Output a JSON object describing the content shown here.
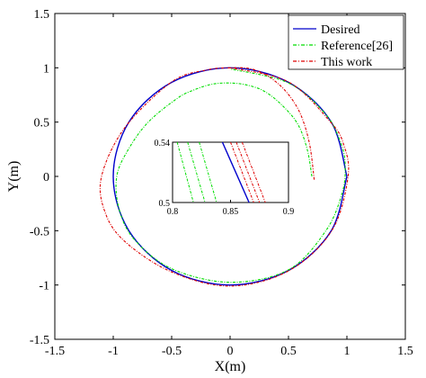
{
  "chart_data": {
    "type": "line",
    "xlabel": "X(m)",
    "ylabel": "Y(m)",
    "xlim": [
      -1.5,
      1.5
    ],
    "ylim": [
      -1.5,
      1.5
    ],
    "xticks": [
      "-1.5",
      "-1",
      "-0.5",
      "0",
      "0.5",
      "1",
      "1.5"
    ],
    "yticks": [
      "-1.5",
      "-1",
      "-0.5",
      "0",
      "0.5",
      "1",
      "1.5"
    ],
    "grid": false,
    "legend_position": "top-right",
    "series": [
      {
        "name": "Desired",
        "color": "#0000cc",
        "style": "solid",
        "x": [
          1.0,
          0.866,
          0.5,
          0.0,
          -0.5,
          -0.866,
          -1.0,
          -0.866,
          -0.5,
          0.0,
          0.5,
          0.866,
          1.0
        ],
        "y": [
          0.0,
          0.5,
          0.866,
          1.0,
          0.866,
          0.5,
          0.0,
          -0.5,
          -0.866,
          -1.0,
          -0.866,
          -0.5,
          0.0
        ]
      },
      {
        "name": "Reference[26]",
        "color": "#00dd00",
        "style": "dash-dot",
        "x": [
          0.7,
          0.66,
          0.58,
          0.45,
          0.3,
          0.15,
          0.0,
          -0.15,
          -0.3,
          -0.45,
          -0.7,
          -0.87,
          -0.97,
          -0.95,
          -0.82,
          -0.5,
          0.0,
          0.5,
          0.82,
          0.96,
          0.985,
          0.95,
          0.82,
          0.5,
          0.0
        ],
        "y": [
          0.0,
          0.25,
          0.48,
          0.65,
          0.78,
          0.84,
          0.86,
          0.85,
          0.8,
          0.72,
          0.5,
          0.25,
          0.0,
          -0.3,
          -0.58,
          -0.85,
          -0.975,
          -0.86,
          -0.5,
          -0.15,
          0.1,
          0.3,
          0.57,
          0.86,
          0.99
        ]
      },
      {
        "name": "This work",
        "color": "#dd0000",
        "style": "dash-dot",
        "x": [
          0.72,
          0.68,
          0.6,
          0.48,
          0.33,
          0.18,
          0.02,
          -0.2,
          -0.5,
          -0.9,
          -1.1,
          -1.07,
          -0.9,
          -0.5,
          0.0,
          0.5,
          0.87,
          1.01,
          0.97,
          0.86,
          0.5,
          0.0
        ],
        "y": [
          -0.03,
          0.3,
          0.58,
          0.78,
          0.92,
          0.99,
          1.0,
          0.98,
          0.87,
          0.45,
          0.0,
          -0.33,
          -0.6,
          -0.88,
          -1.01,
          -0.87,
          -0.5,
          0.0,
          0.3,
          0.5,
          0.87,
          1.0
        ]
      }
    ],
    "inset": {
      "xlim": [
        0.8,
        0.9
      ],
      "ylim": [
        0.5,
        0.54
      ],
      "xticks": [
        "0.8",
        "0.85",
        "0.9"
      ],
      "yticks": [
        "0.5",
        "0.54"
      ],
      "lines": [
        {
          "series": "Desired",
          "x": [
            0.843,
            0.866
          ]
        },
        {
          "series": "Reference[26]",
          "x": [
            0.804,
            0.818
          ]
        },
        {
          "series": "Reference[26]",
          "x": [
            0.813,
            0.828
          ]
        },
        {
          "series": "Reference[26]",
          "x": [
            0.823,
            0.838
          ]
        },
        {
          "series": "This work",
          "x": [
            0.85,
            0.87
          ]
        },
        {
          "series": "This work",
          "x": [
            0.855,
            0.875
          ]
        },
        {
          "series": "This work",
          "x": [
            0.86,
            0.88
          ]
        }
      ]
    }
  }
}
